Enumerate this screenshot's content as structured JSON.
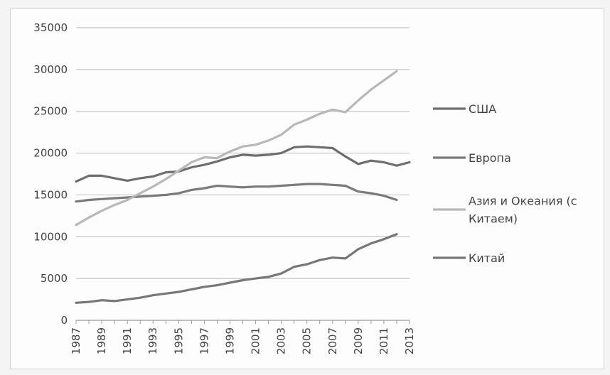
{
  "chart_data": {
    "type": "line",
    "title": "",
    "xlabel": "",
    "ylabel": "",
    "ylim": [
      0,
      35000
    ],
    "yticks": [
      "0",
      "5000",
      "10000",
      "15000",
      "20000",
      "25000",
      "30000",
      "35000"
    ],
    "xticks": [
      "1987",
      "1989",
      "1991",
      "1993",
      "1995",
      "1997",
      "1999",
      "2001",
      "2003",
      "2005",
      "2007",
      "2009",
      "2011",
      "2013"
    ],
    "grid": true,
    "legend_position": "right",
    "x": [
      1987,
      1988,
      1989,
      1990,
      1991,
      1992,
      1993,
      1994,
      1995,
      1996,
      1997,
      1998,
      1999,
      2000,
      2001,
      2002,
      2003,
      2004,
      2005,
      2006,
      2007,
      2008,
      2009,
      2010,
      2011,
      2012,
      2013
    ],
    "series": [
      {
        "name": "США",
        "color": "#6e6e6e",
        "values": [
          16600,
          17300,
          17300,
          17000,
          16700,
          17000,
          17200,
          17700,
          17800,
          18300,
          18600,
          19000,
          19500,
          19800,
          19700,
          19800,
          20000,
          20700,
          20800,
          20700,
          20600,
          19600,
          18700,
          19100,
          18900,
          18500,
          18900
        ]
      },
      {
        "name": "Европа",
        "color": "#7a7a7a",
        "values": [
          14200,
          14400,
          14500,
          14600,
          14700,
          14800,
          14900,
          15000,
          15200,
          15600,
          15800,
          16100,
          16000,
          15900,
          16000,
          16000,
          16100,
          16200,
          16300,
          16300,
          16200,
          16100,
          15400,
          15200,
          14900,
          14400,
          null
        ]
      },
      {
        "name": "Азия и Океания (с Китаем)",
        "color": "#b8b8b8",
        "values": [
          11400,
          12300,
          13100,
          13800,
          14400,
          15200,
          16000,
          16900,
          17900,
          18900,
          19500,
          19400,
          20200,
          20800,
          21000,
          21500,
          22200,
          23400,
          24000,
          24700,
          25200,
          24900,
          26300,
          27600,
          28700,
          29800,
          null
        ]
      },
      {
        "name": "Китай",
        "color": "#777777",
        "values": [
          2100,
          2200,
          2400,
          2300,
          2500,
          2700,
          3000,
          3200,
          3400,
          3700,
          4000,
          4200,
          4500,
          4800,
          5000,
          5200,
          5600,
          6400,
          6700,
          7200,
          7500,
          7400,
          8500,
          9200,
          9700,
          10300,
          null
        ]
      }
    ]
  }
}
